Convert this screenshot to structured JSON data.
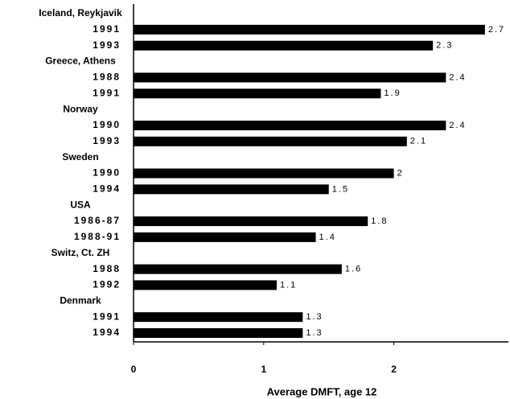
{
  "chart_data": {
    "type": "bar",
    "orientation": "horizontal",
    "groups": [
      {
        "name": "Iceland, Reykjavik",
        "categories": [
          "1991",
          "1993"
        ],
        "values": [
          2.7,
          2.3
        ]
      },
      {
        "name": "Greece, Athens",
        "categories": [
          "1988",
          "1991"
        ],
        "values": [
          2.4,
          1.9
        ]
      },
      {
        "name": "Norway",
        "categories": [
          "1990",
          "1993"
        ],
        "values": [
          2.4,
          2.1
        ]
      },
      {
        "name": "Sweden",
        "categories": [
          "1990",
          "1994"
        ],
        "values": [
          2,
          1.5
        ]
      },
      {
        "name": "USA",
        "categories": [
          "1986-87",
          "1988-91"
        ],
        "values": [
          1.8,
          1.4
        ]
      },
      {
        "name": "Switz, Ct. ZH",
        "categories": [
          "1988",
          "1992"
        ],
        "values": [
          1.6,
          1.1
        ]
      },
      {
        "name": "Denmark",
        "categories": [
          "1991",
          "1994"
        ],
        "values": [
          1.3,
          1.3
        ]
      }
    ],
    "color": "#000000",
    "x_label": "Average DMFT, age 12",
    "xlim": [
      0,
      2.88
    ],
    "xticks": [
      0,
      1,
      2
    ]
  }
}
